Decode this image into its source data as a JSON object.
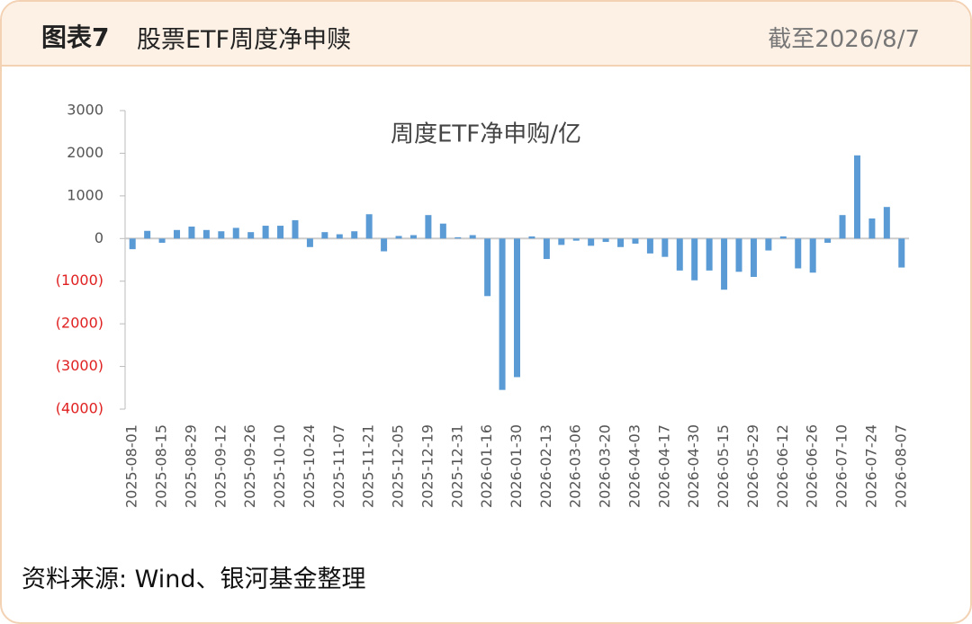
{
  "header": {
    "label": "图表7",
    "title": "股票ETF周度净申赎",
    "date": "截至2026/8/7"
  },
  "chart_data": {
    "type": "bar",
    "title": "周度ETF净申购/亿",
    "categories": [
      "2025-08-01",
      null,
      "2025-08-15",
      null,
      "2025-08-29",
      null,
      "2025-09-12",
      null,
      "2025-09-26",
      null,
      "2025-10-10",
      null,
      "2025-10-24",
      null,
      "2025-11-07",
      null,
      "2025-11-21",
      null,
      "2025-12-05",
      null,
      "2025-12-19",
      null,
      "2025-12-31",
      null,
      "2026-01-16",
      null,
      "2026-01-30",
      null,
      "2026-02-13",
      null,
      "2026-03-06",
      null,
      "2026-03-20",
      null,
      "2026-04-03",
      null,
      "2026-04-17",
      null,
      "2026-04-30",
      null,
      "2026-05-15",
      null,
      "2026-05-29",
      null,
      "2026-06-12",
      null,
      "2026-06-26",
      null,
      "2026-07-10",
      null,
      "2026-07-24",
      null,
      "2026-08-07"
    ],
    "values": [
      -250,
      180,
      -100,
      200,
      280,
      200,
      170,
      250,
      150,
      300,
      300,
      430,
      -200,
      150,
      100,
      170,
      570,
      -300,
      60,
      80,
      550,
      350,
      30,
      80,
      -1350,
      -3550,
      -3250,
      50,
      -480,
      -150,
      -50,
      -170,
      -80,
      -200,
      -120,
      -350,
      -430,
      -750,
      -980,
      -750,
      -1200,
      -780,
      -900,
      -280,
      50,
      -700,
      -800,
      -100,
      550,
      1950,
      470,
      740,
      -680
    ],
    "color": "#5b9bd5",
    "ylim": [
      -4000,
      3000
    ],
    "yticks": [
      {
        "value": -4000,
        "label": "(4000)"
      },
      {
        "value": -3000,
        "label": "(3000)"
      },
      {
        "value": -2000,
        "label": "(2000)"
      },
      {
        "value": -1000,
        "label": "(1000)"
      },
      0,
      1000,
      2000,
      3000
    ],
    "negative_tick_color": "#e02020"
  },
  "footer": {
    "source": "资料来源: Wind、银河基金整理"
  }
}
